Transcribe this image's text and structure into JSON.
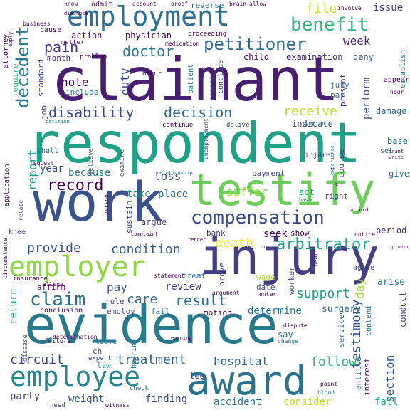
{
  "words": [
    {
      "text": "claimant",
      "color": "#481f70"
    },
    {
      "text": "respondent",
      "color": "#1fa187"
    },
    {
      "text": "evidence",
      "color": "#2a788e"
    },
    {
      "text": "work",
      "color": "#3b528b"
    },
    {
      "text": "injury",
      "color": "#433e85"
    },
    {
      "text": "testify",
      "color": "#6ccd5a"
    },
    {
      "text": "award",
      "color": "#2c728e"
    },
    {
      "text": "employment",
      "color": "#2e6e8e"
    },
    {
      "text": "employee",
      "color": "#24868e"
    },
    {
      "text": "employer",
      "color": "#8fd744"
    },
    {
      "text": "compensation",
      "color": "#3e4989"
    },
    {
      "text": "benefit",
      "color": "#35b779"
    },
    {
      "text": "petitioner",
      "color": "#31688e"
    },
    {
      "text": "decedent",
      "color": "#287c8e"
    },
    {
      "text": "disability",
      "color": "#3e4a89"
    },
    {
      "text": "decision",
      "color": "#31688e"
    },
    {
      "text": "pain",
      "color": "#46337f"
    },
    {
      "text": "doctor",
      "color": "#2a788e"
    },
    {
      "text": "receive",
      "color": "#b8de29"
    },
    {
      "text": "record",
      "color": "#440154"
    },
    {
      "text": "claim",
      "color": "#2c728e"
    },
    {
      "text": "treatment",
      "color": "#355f8d"
    },
    {
      "text": "arbitrator",
      "color": "#20a386"
    },
    {
      "text": "condition",
      "color": "#355f8d"
    },
    {
      "text": "provide",
      "color": "#3b528b"
    },
    {
      "text": "result",
      "color": "#2c728e"
    },
    {
      "text": "care",
      "color": "#31688e"
    },
    {
      "text": "support",
      "color": "#1f9e89"
    },
    {
      "text": "death",
      "color": "#fde725"
    },
    {
      "text": "circuit",
      "color": "#3e4989"
    },
    {
      "text": "testimony",
      "color": "#38588c"
    },
    {
      "text": "section",
      "color": "#39568c"
    },
    {
      "text": "report",
      "color": "#1e9b8a"
    },
    {
      "text": "loss",
      "color": "#3e4989"
    },
    {
      "text": "file",
      "color": "#c2df23"
    },
    {
      "text": "note",
      "color": "#440154"
    },
    {
      "text": "week",
      "color": "#482475"
    },
    {
      "text": "day",
      "color": "#a5db36"
    },
    {
      "text": "review",
      "color": "#433e85"
    },
    {
      "text": "pay",
      "color": "#3b528b"
    },
    {
      "text": "take",
      "color": "#1e9b8a"
    },
    {
      "text": "place",
      "color": "#2c728e"
    },
    {
      "text": "suffer",
      "color": "#8fd744"
    },
    {
      "text": "because",
      "color": "#2c728e"
    },
    {
      "text": "year",
      "color": "#3e4989"
    },
    {
      "text": "duty",
      "color": "#3e4989"
    },
    {
      "text": "issue",
      "color": "#433e85"
    },
    {
      "text": "hospital",
      "color": "#31688e"
    },
    {
      "text": "follow",
      "color": "#35b779"
    },
    {
      "text": "determine",
      "color": "#2c728e"
    },
    {
      "text": "seek",
      "color": "#440154"
    },
    {
      "text": "finding",
      "color": "#3e4989"
    },
    {
      "text": "weight",
      "color": "#38588c"
    },
    {
      "text": "party",
      "color": "#433e85"
    },
    {
      "text": "return",
      "color": "#20a386"
    },
    {
      "text": "perform",
      "color": "#3e4989"
    },
    {
      "text": "accident",
      "color": "#2c728e"
    },
    {
      "text": "consider",
      "color": "#b8de29"
    },
    {
      "text": "surgery",
      "color": "#2c728e"
    },
    {
      "text": "arise",
      "color": "#2c728e"
    },
    {
      "text": "conduct",
      "color": "#3e4989"
    },
    {
      "text": "period",
      "color": "#482475"
    },
    {
      "text": "fall",
      "color": "#20a386"
    },
    {
      "text": "leg",
      "color": "#3e4989"
    },
    {
      "text": "say",
      "color": "#2c728e"
    },
    {
      "text": "damage",
      "color": "#2c728e"
    },
    {
      "text": "physician",
      "color": "#440154"
    },
    {
      "text": "action",
      "color": "#482475"
    },
    {
      "text": "child",
      "color": "#440154"
    },
    {
      "text": "examination",
      "color": "#482475"
    },
    {
      "text": "deny",
      "color": "#39568c"
    },
    {
      "text": "include",
      "color": "#2a788e"
    },
    {
      "text": "month",
      "color": "#482475"
    },
    {
      "text": "indicate",
      "color": "#3e4989"
    },
    {
      "text": "base",
      "color": "#2c728e"
    },
    {
      "text": "give",
      "color": "#2c728e"
    },
    {
      "text": "act",
      "color": "#1fa187"
    },
    {
      "text": "right",
      "color": "#3e4989"
    },
    {
      "text": "show",
      "color": "#440154"
    },
    {
      "text": "bank",
      "color": "#433e85"
    },
    {
      "text": "argue",
      "color": "#433e85"
    },
    {
      "text": "sustain",
      "color": "#3e4989"
    },
    {
      "text": "treat",
      "color": "#2c728e"
    },
    {
      "text": "prove",
      "color": "#433e85"
    },
    {
      "text": "wage",
      "color": "#b8de29"
    },
    {
      "text": "date",
      "color": "#3e4989"
    },
    {
      "text": "motion",
      "color": "#440154"
    },
    {
      "text": "fail",
      "color": "#2c728e"
    },
    {
      "text": "employ",
      "color": "#3e4989"
    },
    {
      "text": "rule",
      "color": "#433e85"
    },
    {
      "text": "affirm",
      "color": "#440154"
    },
    {
      "text": "ch",
      "color": "#3e4989"
    },
    {
      "text": "law",
      "color": "#1e9b8a"
    },
    {
      "text": "conclusion",
      "color": "#440154"
    },
    {
      "text": "knee",
      "color": "#3e4989"
    },
    {
      "text": "shall",
      "color": "#2c728e"
    },
    {
      "text": "cause",
      "color": "#440154"
    },
    {
      "text": "require",
      "color": "#35b779"
    },
    {
      "text": "standard",
      "color": "#3e4989"
    },
    {
      "text": "job",
      "color": "#3e4989"
    },
    {
      "text": "present",
      "color": "#433e85"
    },
    {
      "text": "jury",
      "color": "#2c728e"
    },
    {
      "text": "par",
      "color": "#2c728e"
    },
    {
      "text": "worker",
      "color": "#3e4989"
    },
    {
      "text": "admit",
      "color": "#440154"
    },
    {
      "text": "reverse",
      "color": "#2c728e"
    },
    {
      "text": "appear",
      "color": "#440154"
    },
    {
      "text": "course",
      "color": "#3e4989"
    },
    {
      "text": "service",
      "color": "#2c728e"
    },
    {
      "text": "entitle",
      "color": "#2c728e"
    },
    {
      "text": "interest",
      "color": "#440154"
    },
    {
      "text": "occur",
      "color": "#440154"
    },
    {
      "text": "patient",
      "color": "#2c728e"
    },
    {
      "text": "reason",
      "color": "#433e85"
    },
    {
      "text": "conclude",
      "color": "#3e4989"
    },
    {
      "text": "continue",
      "color": "#440154"
    },
    {
      "text": "deliver",
      "color": "#3e4989"
    },
    {
      "text": "payment",
      "color": "#433e85"
    },
    {
      "text": "injure",
      "color": "#3e4989"
    },
    {
      "text": "agree",
      "color": "#3e4989"
    },
    {
      "text": "contend",
      "color": "#2c728e"
    },
    {
      "text": "hearing",
      "color": "#2c728e"
    },
    {
      "text": "insurance",
      "color": "#440154"
    },
    {
      "text": "failure",
      "color": "#440154"
    },
    {
      "text": "leave",
      "color": "#2c728e"
    },
    {
      "text": "expert",
      "color": "#3e4989"
    },
    {
      "text": "application",
      "color": "#440154"
    },
    {
      "text": "attorney",
      "color": "#440154"
    },
    {
      "text": "establish",
      "color": "#2c728e"
    },
    {
      "text": "need",
      "color": "#3e4989"
    },
    {
      "text": "point",
      "color": "#440154"
    },
    {
      "text": "blood",
      "color": "#2c728e"
    },
    {
      "text": "check",
      "color": "#2c728e"
    },
    {
      "text": "business",
      "color": "#440154"
    },
    {
      "text": "proceeding",
      "color": "#440154"
    },
    {
      "text": "medication",
      "color": "#440154"
    },
    {
      "text": "matter",
      "color": "#440154"
    },
    {
      "text": "problem",
      "color": "#440154"
    },
    {
      "text": "enter",
      "color": "#440154"
    },
    {
      "text": "argument",
      "color": "#440154"
    },
    {
      "text": "dispute",
      "color": "#440154"
    },
    {
      "text": "change",
      "color": "#2c728e"
    },
    {
      "text": "set",
      "color": "#2c728e"
    },
    {
      "text": "statement",
      "color": "#440154"
    },
    {
      "text": "unemployment",
      "color": "#3e4989"
    },
    {
      "text": "relate",
      "color": "#3e4989"
    },
    {
      "text": "request",
      "color": "#440154"
    },
    {
      "text": "determination",
      "color": "#440154"
    },
    {
      "text": "circumstance",
      "color": "#440154"
    },
    {
      "text": "disease",
      "color": "#3e4989"
    },
    {
      "text": "allege",
      "color": "#440154"
    },
    {
      "text": "believe",
      "color": "#2c728e"
    },
    {
      "text": "examine",
      "color": "#3e4989"
    },
    {
      "text": "person",
      "color": "#440154"
    },
    {
      "text": "know",
      "color": "#440154"
    },
    {
      "text": "account",
      "color": "#440154"
    },
    {
      "text": "proof",
      "color": "#440154"
    },
    {
      "text": "brain",
      "color": "#440154"
    },
    {
      "text": "allow",
      "color": "#440154"
    },
    {
      "text": "involve",
      "color": "#440154"
    },
    {
      "text": "diagnose",
      "color": "#440154"
    },
    {
      "text": "apply",
      "color": "#440154"
    },
    {
      "text": "symptom",
      "color": "#2c728e"
    },
    {
      "text": "basic",
      "color": "#2c728e"
    },
    {
      "text": "notice",
      "color": "#440154"
    },
    {
      "text": "hour",
      "color": "#440154"
    },
    {
      "text": "heart",
      "color": "#440154"
    },
    {
      "text": "witness",
      "color": "#440154"
    },
    {
      "text": "experience",
      "color": "#2c728e"
    },
    {
      "text": "opinion",
      "color": "#440154"
    },
    {
      "text": "accord",
      "color": "#440154"
    },
    {
      "text": "grant",
      "color": "#440154"
    },
    {
      "text": "write",
      "color": "#440154"
    },
    {
      "text": "petition",
      "color": "#2c728e"
    },
    {
      "text": "use",
      "color": "#3e4989"
    },
    {
      "text": "render",
      "color": "#440154"
    },
    {
      "text": "relationship",
      "color": "#2c728e"
    },
    {
      "text": "complaint",
      "color": "#440154"
    },
    {
      "text": "%",
      "color": "#440154"
    },
    {
      "text": "earning",
      "color": "#440154"
    }
  ]
}
